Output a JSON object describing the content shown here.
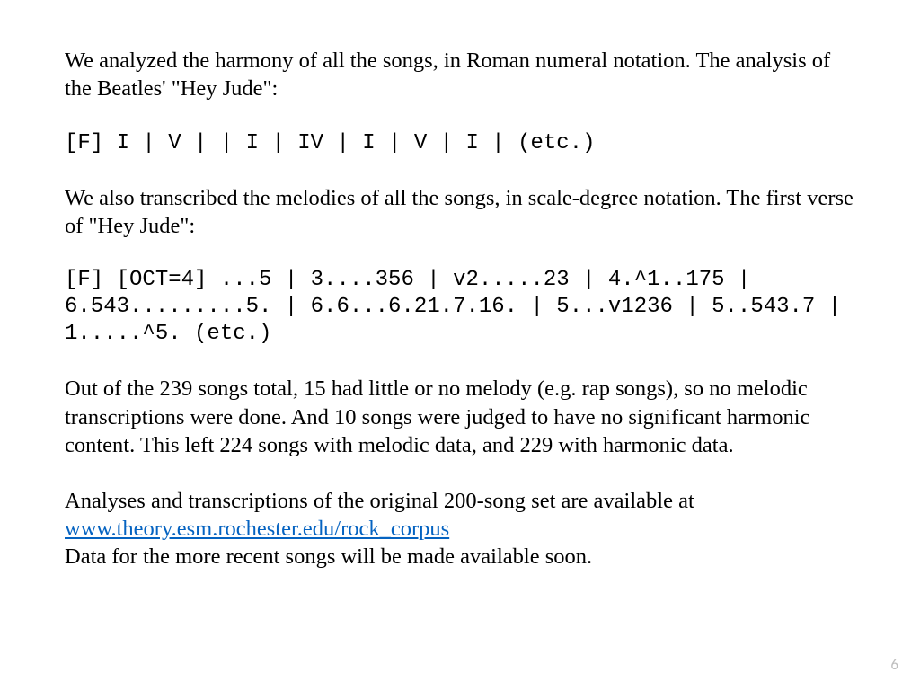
{
  "text_color": "#000000",
  "link_color": "#0563c1",
  "page_num_color": "#bfbfbf",
  "background": "#ffffff",
  "p1": "We analyzed the harmony of all the songs, in Roman numeral notation. The analysis of the Beatles' \"Hey Jude\":",
  "code1": "[F] I | V | | I | IV | I | V | I | (etc.)",
  "p2": "We also transcribed the melodies of all the songs, in scale-degree notation. The first verse of \"Hey Jude\":",
  "code2": "[F] [OCT=4] ...5 | 3....356 | v2.....23 | 4.^1..175 | 6.543.........5. | 6.6...6.21.7.16. | 5...v1236 | 5..543.7 | 1.....^5. (etc.)",
  "p3": "Out of the 239 songs total, 15 had little or no melody (e.g. rap songs), so no melodic transcriptions were done. And 10 songs were judged to have no significant harmonic content. This left 224 songs with melodic data, and 229 with harmonic data.",
  "p4_prelink": "Analyses and transcriptions of the original 200-song set are available at ",
  "p4_link_text": "www.theory.esm.rochester.edu/rock_corpus",
  "p4_link_href": "http://www.theory.esm.rochester.edu/rock_corpus",
  "p4_postlink": "Data for the more recent songs will be made available soon.",
  "page_number": "6"
}
